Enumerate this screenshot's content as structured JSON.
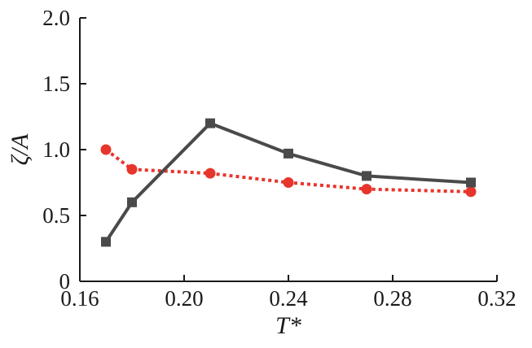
{
  "chart_data": {
    "type": "line",
    "xlabel": "T*",
    "ylabel": "ζ/A",
    "xlim": [
      0.16,
      0.32
    ],
    "ylim": [
      0,
      2.0
    ],
    "x_ticks": [
      "0.16",
      "0.20",
      "0.24",
      "0.28",
      "0.32"
    ],
    "y_ticks": [
      "0",
      "0.5",
      "1.0",
      "1.5",
      "2.0"
    ],
    "grid": false,
    "series": [
      {
        "marker": "square",
        "line_style": "solid",
        "color": "#4a4a4a",
        "x": [
          0.17,
          0.18,
          0.21,
          0.24,
          0.27,
          0.31
        ],
        "values": [
          0.3,
          0.6,
          1.2,
          0.97,
          0.8,
          0.75
        ]
      },
      {
        "marker": "circle",
        "line_style": "dotted",
        "color": "#e8352c",
        "x": [
          0.17,
          0.18,
          0.21,
          0.24,
          0.27,
          0.31
        ],
        "values": [
          1.0,
          0.85,
          0.82,
          0.75,
          0.7,
          0.68
        ]
      }
    ]
  }
}
